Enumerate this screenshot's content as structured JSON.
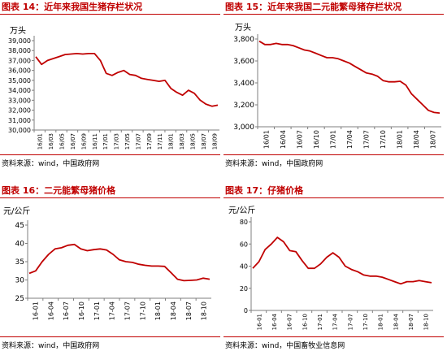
{
  "charts": [
    {
      "title": "图表 14：近年来我国生猪存栏状况",
      "source": "资料来源：wind，中国政府网",
      "chart_data": {
        "type": "line",
        "title": "图表 14：近年来我国生猪存栏状况",
        "ylabel": "万头",
        "ylim": [
          30000,
          39000
        ],
        "yticks": [
          30000,
          31000,
          32000,
          33000,
          34000,
          35000,
          36000,
          37000,
          38000,
          39000
        ],
        "ytick_labels": [
          "30,000",
          "31,000",
          "32,000",
          "33,000",
          "34,000",
          "35,000",
          "36,000",
          "37,000",
          "38,000",
          "39,000"
        ],
        "xtick_labels": [
          "16/01",
          "16/03",
          "16/05",
          "16/07",
          "16/09",
          "16/11",
          "17/01",
          "17/03",
          "17/05",
          "17/07",
          "17/09",
          "17/11",
          "18/01",
          "18/03",
          "18/05",
          "18/07",
          "18/09"
        ],
        "series": [
          {
            "values": [
              37380,
              36600,
              37000,
              37200,
              37400,
              37600,
              37650,
              37700,
              37650,
              37700,
              37700,
              37000,
              35700,
              35500,
              35800,
              36000,
              35600,
              35500,
              35200,
              35100,
              35000,
              34900,
              35000,
              34200,
              33800,
              33500,
              34000,
              33700,
              33000,
              32600,
              32400,
              32500
            ]
          }
        ],
        "color": "#c00000",
        "grid": false
      }
    },
    {
      "title": "图表 15：近年来我国二元能繁母猪存栏状况",
      "source": "资料来源：wind，中国政府网",
      "chart_data": {
        "type": "line",
        "title": "图表 15：近年来我国二元能繁母猪存栏状况",
        "ylabel": "万头",
        "ylim": [
          3000,
          3800
        ],
        "yticks": [
          3000,
          3200,
          3400,
          3600,
          3800
        ],
        "ytick_labels": [
          "3,000",
          "3,200",
          "3,400",
          "3,600",
          "3,800"
        ],
        "xtick_labels": [
          "16/01",
          "16/04",
          "16/07",
          "16/10",
          "17/01",
          "17/04",
          "17/07",
          "17/10",
          "18/01",
          "18/04",
          "18/07"
        ],
        "series": [
          {
            "values": [
              3780,
              3750,
              3750,
              3760,
              3750,
              3750,
              3740,
              3720,
              3700,
              3690,
              3670,
              3650,
              3630,
              3630,
              3620,
              3600,
              3580,
              3550,
              3520,
              3490,
              3480,
              3460,
              3420,
              3410,
              3410,
              3415,
              3380,
              3300,
              3250,
              3200,
              3150,
              3130,
              3125
            ]
          }
        ],
        "color": "#c00000",
        "grid": false
      }
    },
    {
      "title": "图表 16：二元能繁母猪价格",
      "source": "资料来源：wind，中国政府网",
      "chart_data": {
        "type": "line",
        "title": "图表 16：二元能繁母猪价格",
        "ylabel": "元/公斤",
        "ylim": [
          25,
          45
        ],
        "yticks": [
          25,
          30,
          35,
          40,
          45
        ],
        "ytick_labels": [
          "25",
          "30",
          "35",
          "40",
          "45"
        ],
        "xtick_labels": [
          "16-01",
          "16-04",
          "16-07",
          "16-10",
          "17-01",
          "17-04",
          "17-07",
          "17-10",
          "18-01",
          "18-04",
          "18-07",
          "18-10"
        ],
        "series": [
          {
            "values": [
              31.8,
              32.5,
              35,
              37,
              38.5,
              38.8,
              39.5,
              39.7,
              38.5,
              38,
              38.3,
              38.5,
              38.2,
              37,
              35.5,
              35,
              34.8,
              34.3,
              34,
              33.8,
              33.8,
              33.7,
              32,
              30.2,
              29.8,
              29.9,
              30,
              30.5,
              30.2
            ]
          }
        ],
        "color": "#c00000",
        "grid": false
      }
    },
    {
      "title": "图表 17：仔猪价格",
      "source": "资料来源：wind，中国畜牧业信息网",
      "chart_data": {
        "type": "line",
        "title": "图表 17：仔猪价格",
        "ylabel": "元/公斤",
        "ylim": [
          0,
          80
        ],
        "yticks": [
          0,
          20,
          40,
          60,
          80
        ],
        "ytick_labels": [
          "0",
          "20",
          "40",
          "60",
          "80"
        ],
        "xtick_labels": [
          "16-01",
          "16-04",
          "16-07",
          "16-10",
          "17-01",
          "17-04",
          "17-07",
          "17-10",
          "18-01",
          "18-04",
          "18-07",
          "18-10"
        ],
        "series": [
          {
            "values": [
              38,
              44,
              55,
              60,
              66,
              62,
              54,
              53,
              45,
              38,
              38,
              42,
              48,
              52,
              48,
              40,
              37,
              35,
              32,
              31,
              31,
              30,
              28,
              26,
              24,
              26,
              26,
              27,
              26,
              25
            ]
          }
        ],
        "color": "#c00000",
        "grid": false
      }
    }
  ]
}
